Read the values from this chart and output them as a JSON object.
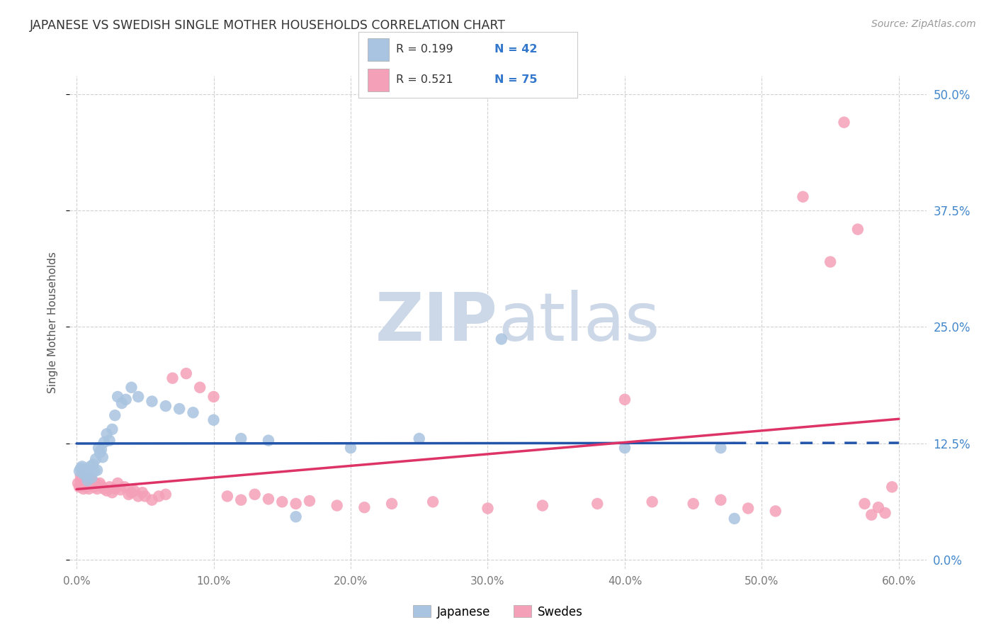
{
  "title": "JAPANESE VS SWEDISH SINGLE MOTHER HOUSEHOLDS CORRELATION CHART",
  "source": "Source: ZipAtlas.com",
  "ylabel": "Single Mother Households",
  "xlabel_vals": [
    0.0,
    0.1,
    0.2,
    0.3,
    0.4,
    0.5,
    0.6
  ],
  "ylabel_vals": [
    0.0,
    0.125,
    0.25,
    0.375,
    0.5
  ],
  "xlim": [
    -0.005,
    0.62
  ],
  "ylim": [
    -0.01,
    0.52
  ],
  "japanese_R": 0.199,
  "japanese_N": 42,
  "swedes_R": 0.521,
  "swedes_N": 75,
  "japanese_color": "#a8c4e0",
  "swedes_color": "#f4a0b8",
  "japanese_line_color": "#2255aa",
  "swedes_line_color": "#dd3366",
  "watermark_color": "#ccd8e8",
  "background_color": "#ffffff",
  "japanese_x": [
    0.002,
    0.003,
    0.004,
    0.005,
    0.006,
    0.007,
    0.008,
    0.009,
    0.01,
    0.011,
    0.012,
    0.013,
    0.014,
    0.015,
    0.016,
    0.017,
    0.018,
    0.019,
    0.02,
    0.022,
    0.024,
    0.026,
    0.028,
    0.03,
    0.033,
    0.036,
    0.04,
    0.045,
    0.055,
    0.065,
    0.075,
    0.085,
    0.1,
    0.12,
    0.14,
    0.16,
    0.2,
    0.25,
    0.31,
    0.4,
    0.47,
    0.48
  ],
  "japanese_y": [
    0.095,
    0.098,
    0.1,
    0.092,
    0.097,
    0.09,
    0.085,
    0.093,
    0.1,
    0.088,
    0.102,
    0.095,
    0.108,
    0.096,
    0.12,
    0.115,
    0.118,
    0.11,
    0.126,
    0.135,
    0.128,
    0.14,
    0.155,
    0.175,
    0.168,
    0.172,
    0.185,
    0.175,
    0.17,
    0.165,
    0.162,
    0.158,
    0.15,
    0.13,
    0.128,
    0.046,
    0.12,
    0.13,
    0.237,
    0.12,
    0.12,
    0.044
  ],
  "swedes_x": [
    0.001,
    0.002,
    0.003,
    0.003,
    0.004,
    0.004,
    0.005,
    0.005,
    0.006,
    0.007,
    0.007,
    0.008,
    0.008,
    0.009,
    0.009,
    0.01,
    0.01,
    0.011,
    0.012,
    0.013,
    0.014,
    0.015,
    0.016,
    0.017,
    0.018,
    0.02,
    0.022,
    0.024,
    0.026,
    0.028,
    0.03,
    0.032,
    0.035,
    0.038,
    0.04,
    0.042,
    0.045,
    0.048,
    0.05,
    0.055,
    0.06,
    0.065,
    0.07,
    0.08,
    0.09,
    0.1,
    0.11,
    0.12,
    0.13,
    0.14,
    0.15,
    0.16,
    0.17,
    0.19,
    0.21,
    0.23,
    0.26,
    0.3,
    0.34,
    0.38,
    0.4,
    0.42,
    0.45,
    0.47,
    0.49,
    0.51,
    0.53,
    0.55,
    0.56,
    0.57,
    0.575,
    0.58,
    0.585,
    0.59,
    0.595
  ],
  "swedes_y": [
    0.082,
    0.078,
    0.085,
    0.09,
    0.08,
    0.086,
    0.076,
    0.083,
    0.079,
    0.084,
    0.078,
    0.08,
    0.086,
    0.082,
    0.076,
    0.084,
    0.079,
    0.085,
    0.08,
    0.078,
    0.082,
    0.076,
    0.08,
    0.082,
    0.079,
    0.076,
    0.074,
    0.078,
    0.072,
    0.076,
    0.082,
    0.075,
    0.078,
    0.07,
    0.072,
    0.074,
    0.068,
    0.072,
    0.068,
    0.064,
    0.068,
    0.07,
    0.195,
    0.2,
    0.185,
    0.175,
    0.068,
    0.064,
    0.07,
    0.065,
    0.062,
    0.06,
    0.063,
    0.058,
    0.056,
    0.06,
    0.062,
    0.055,
    0.058,
    0.06,
    0.172,
    0.062,
    0.06,
    0.064,
    0.055,
    0.052,
    0.39,
    0.32,
    0.47,
    0.355,
    0.06,
    0.048,
    0.056,
    0.05,
    0.078
  ]
}
